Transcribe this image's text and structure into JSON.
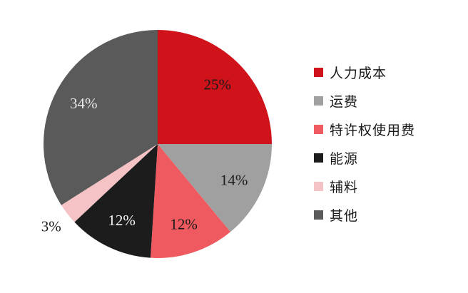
{
  "page": {
    "background": "#FFFFFF"
  },
  "chart_data": {
    "type": "pie",
    "title": "",
    "categories": [
      "人力成本",
      "运费",
      "特许权使用费",
      "能源",
      "辅料",
      "其他"
    ],
    "values": [
      25,
      14,
      12,
      12,
      3,
      34
    ],
    "unit": "%",
    "start_angle_deg": 0,
    "direction": "clockwise",
    "legend_position": "right",
    "grid": false,
    "slices": [
      {
        "name": "人力成本",
        "value": 25,
        "label": "25%",
        "color": "#D0121A",
        "label_color": "#1A1A1A",
        "label_outside": false
      },
      {
        "name": "运费",
        "value": 14,
        "label": "14%",
        "color": "#A0A0A0",
        "label_color": "#1A1A1A",
        "label_outside": false
      },
      {
        "name": "特许权使用费",
        "value": 12,
        "label": "12%",
        "color": "#EE5A5F",
        "label_color": "#1A1A1A",
        "label_outside": false
      },
      {
        "name": "能源",
        "value": 12,
        "label": "12%",
        "color": "#1C1C1C",
        "label_color": "#F5F5F5",
        "label_outside": false
      },
      {
        "name": "辅料",
        "value": 3,
        "label": "3%",
        "color": "#F5C2C6",
        "label_color": "#1A1A1A",
        "label_outside": true
      },
      {
        "name": "其他",
        "value": 34,
        "label": "34%",
        "color": "#5A5A5A",
        "label_color": "#E9E9E9",
        "label_outside": false
      }
    ]
  }
}
